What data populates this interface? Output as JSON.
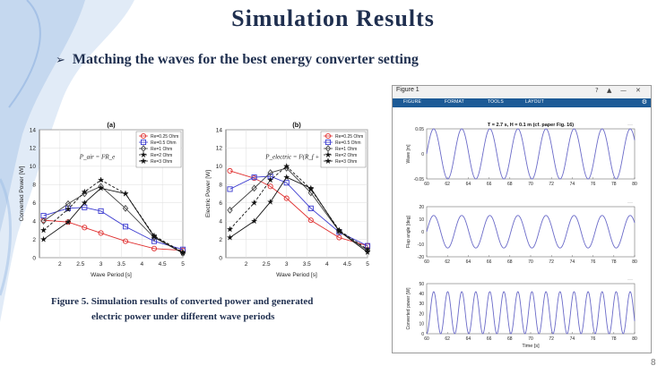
{
  "slide": {
    "title": "Simulation Results",
    "bullet": "Matching the waves for the best energy converter setting",
    "caption_line1": "Figure 5. Simulation results of converted power and generated",
    "caption_line2": "electric power under different wave periods",
    "page_number": "8"
  },
  "matlab": {
    "window_title": "Figure 1",
    "tabs": [
      "FIGURE",
      "FORMAT",
      "TOOLS",
      "LAYOUT"
    ],
    "plot_title": "T = 2.7 s, H = 0.1 m (cf. paper Fig. 16)",
    "line_color": "#6a6ac8"
  },
  "chart_data": [
    {
      "type": "line",
      "title": "(a)",
      "annotation": "P_air = I²R_e",
      "xlabel": "Wave Period [s]",
      "ylabel": "Converted Power [W]",
      "xlim": [
        1.5,
        5
      ],
      "ylim": [
        0,
        14
      ],
      "xticks": [
        2,
        2.5,
        3,
        3.5,
        4,
        4.5,
        5
      ],
      "yticks": [
        0,
        2,
        4,
        6,
        8,
        10,
        12,
        14
      ],
      "legend_position": "top-right",
      "x": [
        1.6,
        2.2,
        2.6,
        3.0,
        3.6,
        4.3,
        5.0
      ],
      "series": [
        {
          "name": "Re=0.25 Ohm",
          "color": "#e03030",
          "marker": "circle",
          "dash": "solid",
          "values": [
            4.1,
            3.9,
            3.3,
            2.7,
            1.8,
            1.0,
            0.8
          ]
        },
        {
          "name": "Re=0.5 Ohm",
          "color": "#3a3ad0",
          "marker": "square",
          "dash": "solid",
          "values": [
            4.6,
            5.4,
            5.5,
            5.1,
            3.4,
            1.8,
            0.9
          ]
        },
        {
          "name": "Re=1 Ohm",
          "color": "#444444",
          "marker": "diamond",
          "dash": "solid",
          "values": [
            4.0,
            5.9,
            7.0,
            7.8,
            5.4,
            2.2,
            0.5
          ]
        },
        {
          "name": "Re=2 Ohm",
          "color": "#111111",
          "marker": "star",
          "dash": "dashed",
          "values": [
            3.0,
            5.3,
            7.2,
            8.5,
            7.0,
            2.4,
            0.6
          ]
        },
        {
          "name": "Re=3 Ohm",
          "color": "#111111",
          "marker": "star",
          "dash": "solid",
          "values": [
            2.0,
            3.9,
            6.0,
            7.6,
            7.0,
            2.3,
            0.5
          ]
        }
      ]
    },
    {
      "type": "line",
      "title": "(b)",
      "annotation": "P_electric = I²(R_f + R_e)",
      "xlabel": "Wave Period [s]",
      "ylabel": "Electric Power [W]",
      "xlim": [
        1.5,
        5
      ],
      "ylim": [
        0,
        14
      ],
      "xticks": [
        2,
        2.5,
        3,
        3.5,
        4,
        4.5,
        5
      ],
      "yticks": [
        0,
        2,
        4,
        6,
        8,
        10,
        12,
        14
      ],
      "legend_position": "top-right",
      "x": [
        1.6,
        2.2,
        2.6,
        3.0,
        3.6,
        4.3,
        5.0
      ],
      "series": [
        {
          "name": "Re=0.25 Ohm",
          "color": "#e03030",
          "marker": "circle",
          "dash": "solid",
          "values": [
            9.5,
            8.7,
            7.8,
            6.5,
            4.1,
            2.2,
            1.3
          ]
        },
        {
          "name": "Re=0.5 Ohm",
          "color": "#3a3ad0",
          "marker": "square",
          "dash": "solid",
          "values": [
            7.5,
            8.8,
            8.9,
            8.2,
            5.4,
            2.8,
            1.3
          ]
        },
        {
          "name": "Re=1 Ohm",
          "color": "#444444",
          "marker": "diamond",
          "dash": "solid",
          "values": [
            5.2,
            7.6,
            9.3,
            9.8,
            7.1,
            2.9,
            0.8
          ]
        },
        {
          "name": "Re=2 Ohm",
          "color": "#111111",
          "marker": "star",
          "dash": "dashed",
          "values": [
            3.1,
            6.0,
            8.5,
            10.0,
            7.5,
            3.0,
            0.9
          ]
        },
        {
          "name": "Re=3 Ohm",
          "color": "#111111",
          "marker": "star",
          "dash": "solid",
          "values": [
            2.2,
            4.0,
            6.1,
            8.8,
            7.6,
            2.9,
            0.6
          ]
        }
      ]
    },
    {
      "type": "line",
      "ylabel": "Wave [m]",
      "xlim": [
        60,
        80
      ],
      "ylim": [
        -0.05,
        0.05
      ],
      "xticks": [
        60,
        62,
        64,
        66,
        68,
        70,
        72,
        74,
        76,
        78,
        80
      ],
      "yticks": [
        -0.05,
        0,
        0.05
      ],
      "ytick_labels": [
        "-0.05",
        "0",
        "0.05"
      ],
      "amplitude": 0.05,
      "period": 2.7
    },
    {
      "type": "line",
      "ylabel": "Flap angle [deg]",
      "xlim": [
        60,
        80
      ],
      "ylim": [
        -20,
        20
      ],
      "xticks": [
        60,
        62,
        64,
        66,
        68,
        70,
        72,
        74,
        76,
        78,
        80
      ],
      "yticks": [
        -20,
        -10,
        0,
        10,
        20
      ],
      "ytick_labels": [
        "-20",
        "-10",
        "0",
        "10",
        "20"
      ],
      "amplitude": 13,
      "period": 2.7
    },
    {
      "type": "line",
      "ylabel": "Converted power [W]",
      "xlabel": "Time [s]",
      "xlim": [
        60,
        80
      ],
      "ylim": [
        0,
        50
      ],
      "xticks": [
        60,
        62,
        64,
        66,
        68,
        70,
        72,
        74,
        76,
        78,
        80
      ],
      "yticks": [
        0,
        10,
        20,
        30,
        40,
        50
      ],
      "ytick_labels": [
        "0",
        "10",
        "20",
        "30",
        "40",
        "50"
      ],
      "amplitude": 42,
      "period": 1.35
    }
  ]
}
